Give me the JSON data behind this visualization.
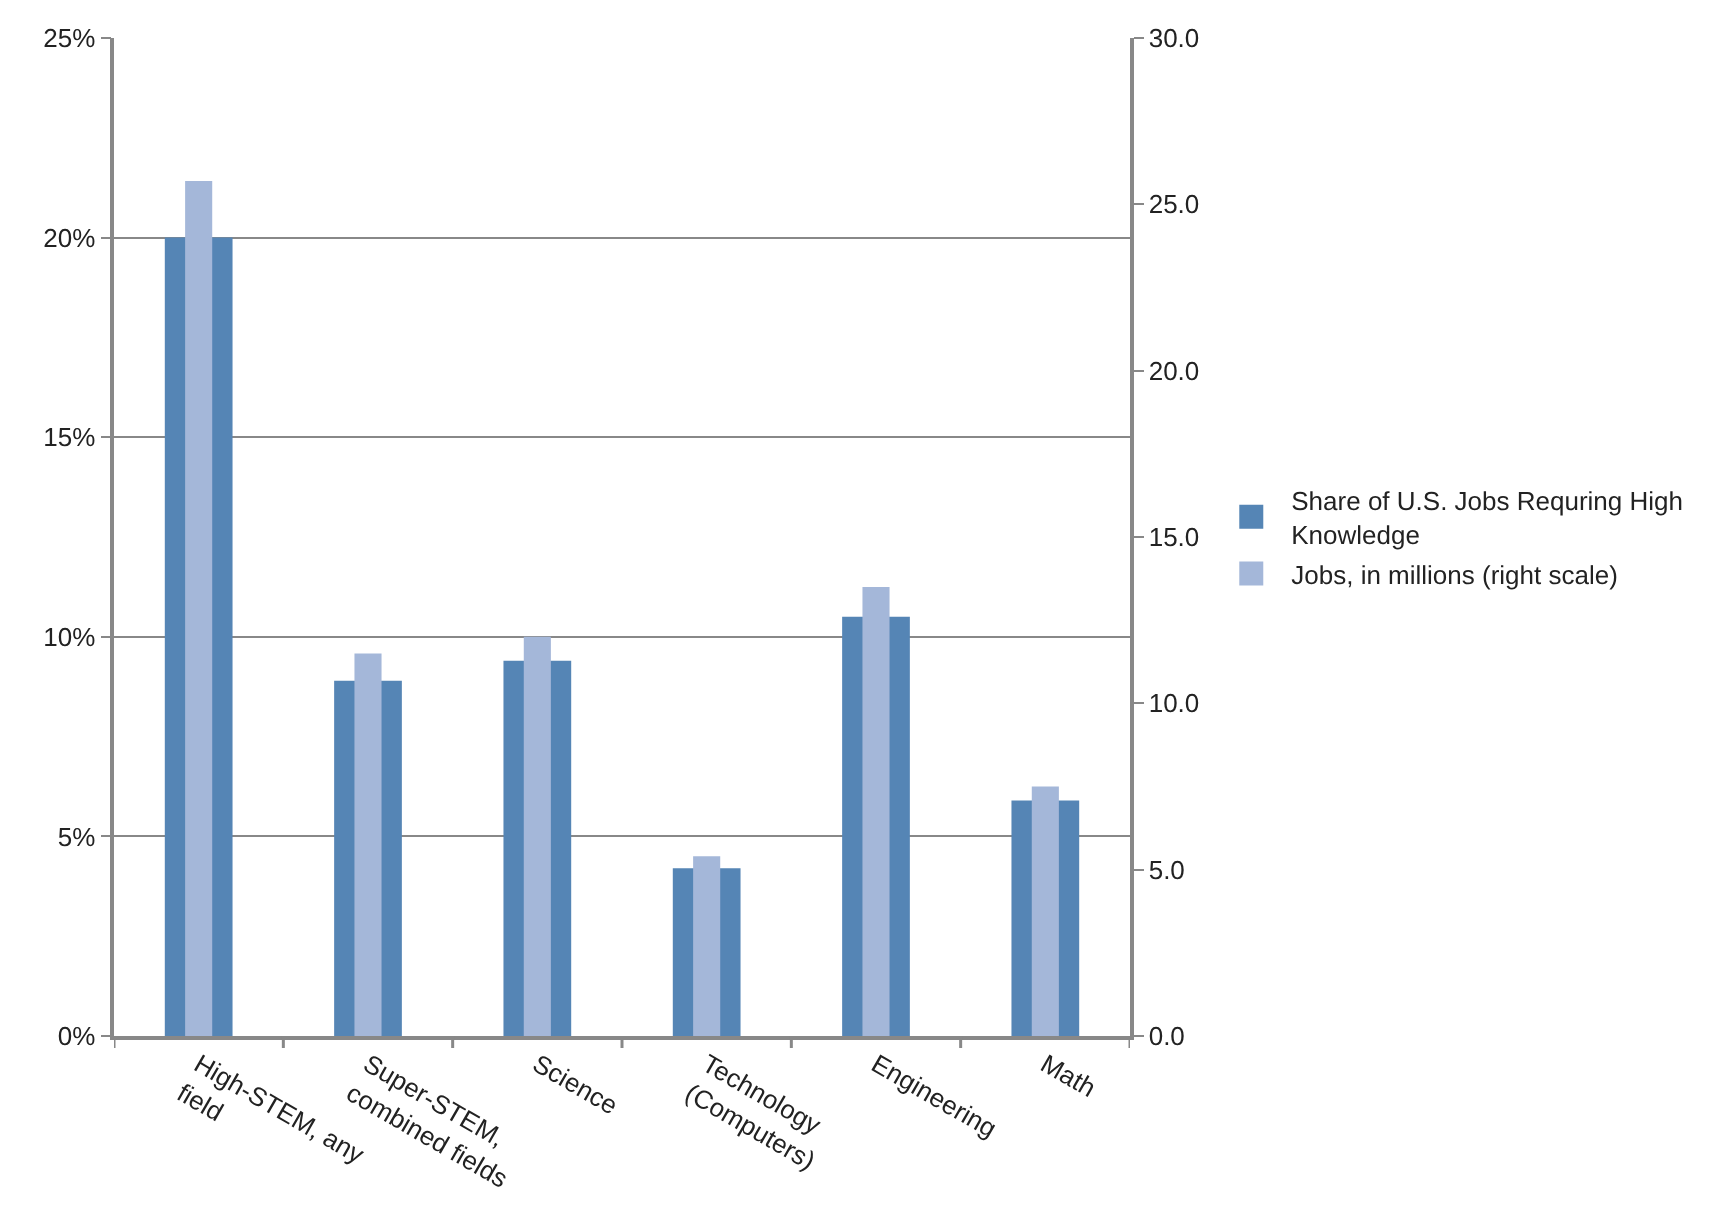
{
  "chart_data": {
    "type": "bar",
    "categories": [
      "High-STEM, any field",
      "Super-STEM, combined fields",
      "Science",
      "Technology (Computers)",
      "Engineering",
      "Math"
    ],
    "series": [
      {
        "name": "Share of U.S. Jobs Requring High Knowledge",
        "color": "#5585b5",
        "values": [
          20.0,
          8.9,
          9.4,
          4.2,
          10.5,
          5.9
        ]
      },
      {
        "name": "Jobs, in millions (right scale)",
        "color": "#a4b7d9",
        "values": [
          25.7,
          11.5,
          12.0,
          5.4,
          13.5,
          7.5
        ],
        "axis": "y2"
      }
    ],
    "ylim": [
      0,
      25
    ],
    "yticks": [
      {
        "value": 0,
        "label": "0%"
      },
      {
        "value": 5,
        "label": "5%"
      },
      {
        "value": 10,
        "label": "10%"
      },
      {
        "value": 15,
        "label": "15%"
      },
      {
        "value": 20,
        "label": "20%"
      },
      {
        "value": 25,
        "label": "25%"
      }
    ],
    "y2lim": [
      0,
      30
    ],
    "y2ticks": [
      {
        "value": 0,
        "label": "0.0"
      },
      {
        "value": 5,
        "label": "5.0"
      },
      {
        "value": 10,
        "label": "10.0"
      },
      {
        "value": 15,
        "label": "15.0"
      },
      {
        "value": 20,
        "label": "20.0"
      },
      {
        "value": 25,
        "label": "25.0"
      },
      {
        "value": 30,
        "label": "30.0"
      }
    ],
    "grid": "y",
    "legend": "right"
  }
}
